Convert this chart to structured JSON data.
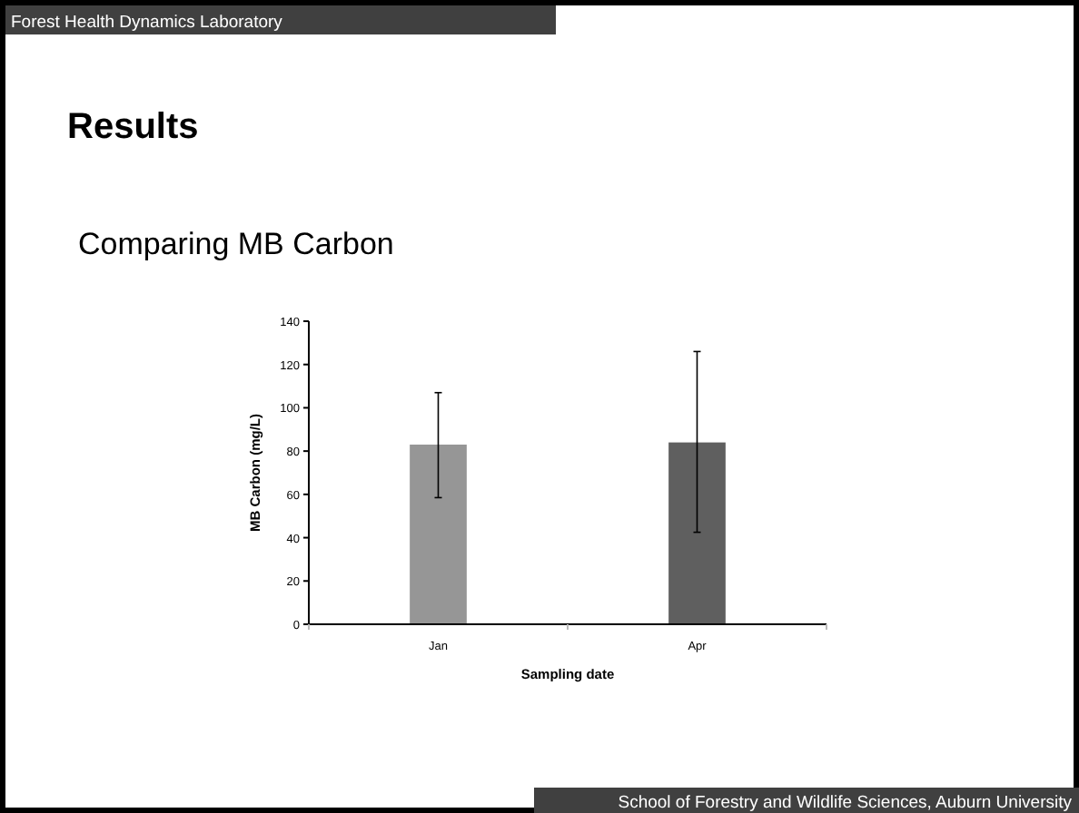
{
  "chart_data": {
    "type": "bar",
    "title": "Results",
    "subtitle": "Comparing MB Carbon",
    "xlabel": "Sampling date",
    "ylabel": "MB Carbon (mg/L)",
    "categories": [
      "Jan",
      "Apr"
    ],
    "values": [
      83,
      84
    ],
    "colors": [
      "#969696",
      "#5f5f5f"
    ],
    "errors": [
      [
        58.5,
        107
      ],
      [
        42.5,
        126
      ]
    ],
    "ylim": [
      0,
      140
    ],
    "yticks": [
      0,
      20,
      40,
      60,
      80,
      100,
      120,
      140
    ],
    "annotations": [
      "Forest Health Dynamics Laboratory",
      "School of Forestry and Wildlife Sciences, Auburn University"
    ]
  }
}
